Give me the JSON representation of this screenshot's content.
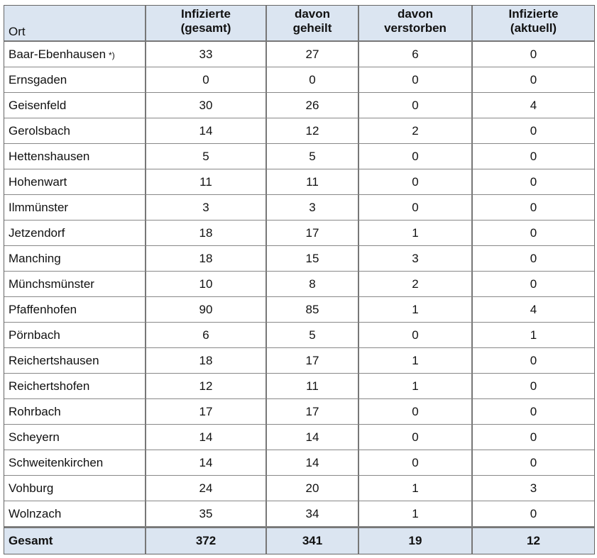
{
  "table": {
    "header": [
      [
        "Ort"
      ],
      [
        "Infizierte",
        "(gesamt)"
      ],
      [
        "davon",
        "geheilt"
      ],
      [
        "davon",
        "verstorben"
      ],
      [
        "Infizierte",
        "(aktuell)"
      ]
    ],
    "rows": [
      {
        "ort": "Baar-Ebenhausen",
        "mark": "*)",
        "cells": [
          33,
          27,
          6,
          0
        ]
      },
      {
        "ort": "Ernsgaden",
        "cells": [
          0,
          0,
          0,
          0
        ]
      },
      {
        "ort": "Geisenfeld",
        "cells": [
          30,
          26,
          0,
          4
        ]
      },
      {
        "ort": "Gerolsbach",
        "cells": [
          14,
          12,
          2,
          0
        ]
      },
      {
        "ort": "Hettenshausen",
        "cells": [
          5,
          5,
          0,
          0
        ]
      },
      {
        "ort": "Hohenwart",
        "cells": [
          11,
          11,
          0,
          0
        ]
      },
      {
        "ort": "Ilmmünster",
        "cells": [
          3,
          3,
          0,
          0
        ]
      },
      {
        "ort": "Jetzendorf",
        "cells": [
          18,
          17,
          1,
          0
        ]
      },
      {
        "ort": "Manching",
        "cells": [
          18,
          15,
          3,
          0
        ]
      },
      {
        "ort": "Münchsmünster",
        "cells": [
          10,
          8,
          2,
          0
        ]
      },
      {
        "ort": "Pfaffenhofen",
        "cells": [
          90,
          85,
          1,
          4
        ]
      },
      {
        "ort": "Pörnbach",
        "cells": [
          6,
          5,
          0,
          1
        ]
      },
      {
        "ort": "Reichertshausen",
        "cells": [
          18,
          17,
          1,
          0
        ]
      },
      {
        "ort": "Reichertshofen",
        "cells": [
          12,
          11,
          1,
          0
        ]
      },
      {
        "ort": "Rohrbach",
        "cells": [
          17,
          17,
          0,
          0
        ]
      },
      {
        "ort": "Scheyern",
        "cells": [
          14,
          14,
          0,
          0
        ]
      },
      {
        "ort": "Schweitenkirchen",
        "cells": [
          14,
          14,
          0,
          0
        ]
      },
      {
        "ort": "Vohburg",
        "cells": [
          24,
          20,
          1,
          3
        ]
      },
      {
        "ort": "Wolnzach",
        "cells": [
          35,
          34,
          1,
          0
        ]
      }
    ],
    "total": {
      "ort": "Gesamt",
      "cells": [
        372,
        341,
        19,
        12
      ]
    }
  }
}
